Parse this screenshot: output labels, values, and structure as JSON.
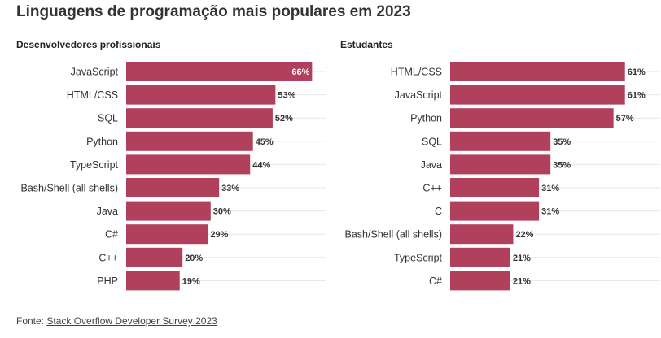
{
  "title": "Linguagens de programação mais populares em 2023",
  "footer": {
    "prefix": "Fonte: ",
    "link_text": "Stack Overflow Developer Survey 2023"
  },
  "colors": {
    "bar": "#b0405c",
    "grid": "#e6e6e6",
    "label_inside": "#ffffff",
    "label_outside": "#333333"
  },
  "chart_data": [
    {
      "type": "bar",
      "orientation": "horizontal",
      "subtitle": "Desenvolvedores profissionais",
      "categories": [
        "JavaScript",
        "HTML/CSS",
        "SQL",
        "Python",
        "TypeScript",
        "Bash/Shell (all shells)",
        "Java",
        "C#",
        "C++",
        "PHP"
      ],
      "values": [
        66,
        53,
        52,
        45,
        44,
        33,
        30,
        29,
        20,
        19
      ],
      "value_labels": [
        "66%",
        "53%",
        "52%",
        "45%",
        "44%",
        "33%",
        "30%",
        "29%",
        "20%",
        "19%"
      ],
      "xlim": [
        0,
        100
      ],
      "grid": true
    },
    {
      "type": "bar",
      "orientation": "horizontal",
      "subtitle": "Estudantes",
      "categories": [
        "HTML/CSS",
        "JavaScript",
        "Python",
        "SQL",
        "Java",
        "C++",
        "C",
        "Bash/Shell (all shells)",
        "TypeScript",
        "C#"
      ],
      "values": [
        61,
        61,
        57,
        35,
        35,
        31,
        31,
        22,
        21,
        21
      ],
      "value_labels": [
        "61%",
        "61%",
        "57%",
        "35%",
        "35%",
        "31%",
        "31%",
        "22%",
        "21%",
        "21%"
      ],
      "xlim": [
        0,
        100
      ],
      "grid": true
    }
  ]
}
